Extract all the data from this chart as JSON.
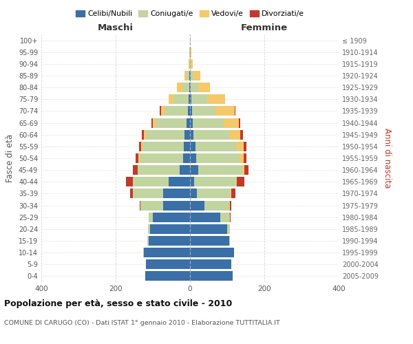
{
  "age_groups": [
    "0-4",
    "5-9",
    "10-14",
    "15-19",
    "20-24",
    "25-29",
    "30-34",
    "35-39",
    "40-44",
    "45-49",
    "50-54",
    "55-59",
    "60-64",
    "65-69",
    "70-74",
    "75-79",
    "80-84",
    "85-89",
    "90-94",
    "95-99",
    "100+"
  ],
  "birth_years": [
    "2005-2009",
    "2000-2004",
    "1995-1999",
    "1990-1994",
    "1985-1989",
    "1980-1984",
    "1975-1979",
    "1970-1974",
    "1965-1969",
    "1960-1964",
    "1955-1959",
    "1950-1954",
    "1945-1949",
    "1940-1944",
    "1935-1939",
    "1930-1934",
    "1925-1929",
    "1920-1924",
    "1915-1919",
    "1910-1914",
    "≤ 1909"
  ],
  "males": {
    "celibi": [
      120,
      118,
      125,
      112,
      108,
      100,
      72,
      72,
      58,
      28,
      18,
      16,
      14,
      10,
      6,
      3,
      2,
      2,
      0,
      0,
      0
    ],
    "coniugati": [
      0,
      0,
      1,
      2,
      5,
      12,
      62,
      82,
      95,
      112,
      118,
      112,
      105,
      82,
      62,
      42,
      18,
      8,
      2,
      1,
      0
    ],
    "vedovi": [
      0,
      0,
      0,
      0,
      0,
      0,
      0,
      0,
      0,
      1,
      2,
      3,
      5,
      8,
      10,
      12,
      15,
      5,
      2,
      1,
      0
    ],
    "divorziati": [
      0,
      0,
      0,
      0,
      0,
      0,
      2,
      8,
      20,
      12,
      8,
      6,
      5,
      4,
      3,
      1,
      0,
      0,
      0,
      0,
      0
    ]
  },
  "females": {
    "nubili": [
      115,
      112,
      118,
      105,
      100,
      82,
      38,
      18,
      12,
      22,
      16,
      14,
      10,
      8,
      6,
      4,
      2,
      2,
      0,
      0,
      0
    ],
    "coniugate": [
      0,
      0,
      1,
      2,
      8,
      25,
      68,
      92,
      112,
      118,
      118,
      112,
      98,
      82,
      62,
      42,
      20,
      8,
      2,
      1,
      0
    ],
    "vedove": [
      0,
      0,
      0,
      0,
      0,
      1,
      1,
      2,
      2,
      6,
      10,
      18,
      28,
      42,
      52,
      48,
      32,
      18,
      5,
      2,
      0
    ],
    "divorziate": [
      0,
      0,
      0,
      0,
      0,
      1,
      5,
      10,
      20,
      12,
      8,
      7,
      6,
      4,
      3,
      1,
      0,
      0,
      0,
      0,
      0
    ]
  },
  "colors": {
    "celibi": "#3a6fa8",
    "coniugati": "#c2d4a0",
    "vedovi": "#f5c96a",
    "divorziati": "#c0392b"
  },
  "xlim": 400,
  "title": "Popolazione per età, sesso e stato civile - 2010",
  "subtitle": "COMUNE DI CARUGO (CO) - Dati ISTAT 1° gennaio 2010 - Elaborazione TUTTITALIA.IT",
  "ylabel_left": "Fasce di età",
  "ylabel_right": "Anni di nascita",
  "xlabel_left": "Maschi",
  "xlabel_right": "Femmine",
  "legend_labels": [
    "Celibi/Nubili",
    "Coniugati/e",
    "Vedovi/e",
    "Divorziati/e"
  ],
  "background_color": "#ffffff",
  "grid_color": "#cccccc"
}
